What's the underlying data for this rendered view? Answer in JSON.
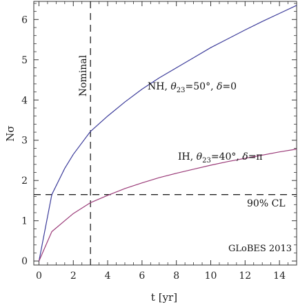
{
  "chart_data": {
    "type": "line",
    "xlabel": "t [yr]",
    "ylabel": "Nσ",
    "xlim": [
      -0.3,
      15
    ],
    "ylim": [
      -0.1,
      6.45
    ],
    "xticks": [
      0,
      2,
      4,
      6,
      8,
      10,
      12,
      14
    ],
    "yticks": [
      0,
      1,
      2,
      3,
      4,
      5,
      6
    ],
    "colors": {
      "NH": "#3b3b9a",
      "IH": "#9a3a78"
    },
    "series": [
      {
        "name": "NH",
        "label_parts": [
          "NH, ",
          "θ",
          "23",
          "=50°, ",
          "δ",
          "=0"
        ],
        "x": [
          0,
          0.75,
          1.5,
          2,
          3,
          4,
          5,
          6,
          7,
          8,
          9,
          10,
          11,
          12,
          13,
          14,
          15
        ],
        "values": [
          0,
          1.65,
          2.3,
          2.65,
          3.22,
          3.6,
          3.95,
          4.27,
          4.55,
          4.8,
          5.05,
          5.3,
          5.52,
          5.74,
          5.95,
          6.15,
          6.35
        ]
      },
      {
        "name": "IH",
        "label_parts": [
          "IH, ",
          "θ",
          "23",
          "=40°, ",
          "δ",
          "=π"
        ],
        "x": [
          0,
          0.75,
          1.5,
          2,
          3,
          4,
          5,
          6,
          7,
          8,
          9,
          10,
          11,
          12,
          13,
          14,
          15
        ],
        "values": [
          0,
          0.73,
          1.0,
          1.18,
          1.45,
          1.63,
          1.8,
          1.94,
          2.07,
          2.18,
          2.28,
          2.38,
          2.47,
          2.55,
          2.63,
          2.71,
          2.78
        ]
      }
    ],
    "reference_lines": {
      "nominal": {
        "x": 3,
        "label": "Nominal"
      },
      "cl": {
        "y": 1.65,
        "label": "90% CL"
      }
    },
    "watermark": "GLoBES 2013"
  }
}
